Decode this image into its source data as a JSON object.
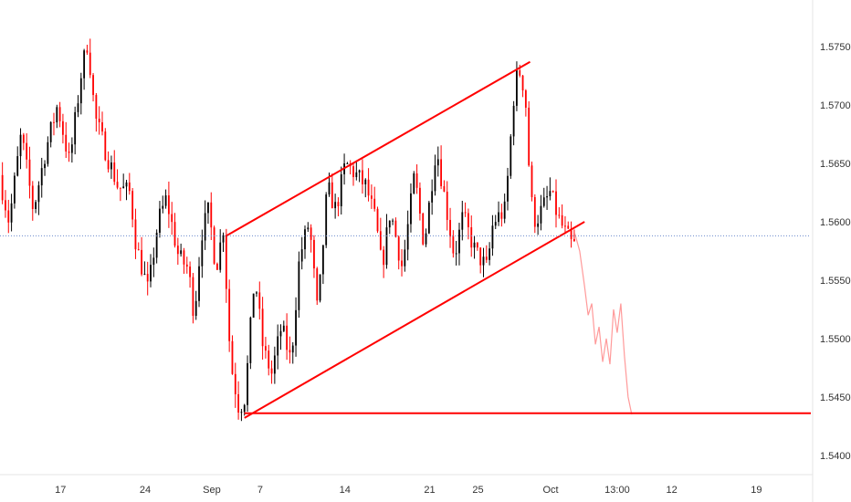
{
  "chart_data": {
    "type": "candlestick",
    "title": "",
    "xlabel": "",
    "ylabel": "",
    "ylim": [
      1.5385,
      1.579
    ],
    "yticks": [
      "1.57500",
      "1.57000",
      "1.56500",
      "1.56000",
      "1.55500",
      "1.55000",
      "1.54500",
      "1.54000"
    ],
    "ytick_values": [
      1.575,
      1.57,
      1.565,
      1.56,
      1.555,
      1.55,
      1.545,
      1.54
    ],
    "xticks": [
      {
        "label": "17",
        "x": 0.5
      },
      {
        "label": "24",
        "x": 7.5
      },
      {
        "label": "Sep",
        "x": 13.0
      },
      {
        "label": "7",
        "x": 17.0
      },
      {
        "label": "14",
        "x": 24.0
      },
      {
        "label": "21",
        "x": 31.0
      },
      {
        "label": "25",
        "x": 35.0
      },
      {
        "label": "Oct",
        "x": 41.0
      },
      {
        "label": "13:00",
        "x": 46.5
      },
      {
        "label": "12",
        "x": 51.0
      },
      {
        "label": "19",
        "x": 58.0
      }
    ],
    "x_range": [
      -4.5,
      62.5
    ],
    "candle_path": [
      [
        -4.3,
        1.564
      ],
      [
        -3.5,
        1.56
      ],
      [
        -2.5,
        1.5675
      ],
      [
        -1.5,
        1.561
      ],
      [
        -0.5,
        1.566
      ],
      [
        0.5,
        1.57
      ],
      [
        1.5,
        1.565
      ],
      [
        2.5,
        1.573
      ],
      [
        3.0,
        1.5755
      ],
      [
        3.6,
        1.569
      ],
      [
        4.5,
        1.566
      ],
      [
        5.5,
        1.563
      ],
      [
        6.5,
        1.5625
      ],
      [
        7.0,
        1.558
      ],
      [
        8.0,
        1.554
      ],
      [
        8.8,
        1.56
      ],
      [
        9.5,
        1.562
      ],
      [
        10.5,
        1.557
      ],
      [
        11.3,
        1.556
      ],
      [
        11.8,
        1.552
      ],
      [
        12.4,
        1.559
      ],
      [
        13.0,
        1.561
      ],
      [
        13.6,
        1.556
      ],
      [
        14.2,
        1.5595
      ],
      [
        14.8,
        1.548
      ],
      [
        15.5,
        1.544
      ],
      [
        16.0,
        1.545
      ],
      [
        16.8,
        1.5555
      ],
      [
        17.5,
        1.549
      ],
      [
        18.2,
        1.547
      ],
      [
        19.0,
        1.551
      ],
      [
        19.8,
        1.548
      ],
      [
        20.5,
        1.557
      ],
      [
        21.3,
        1.56
      ],
      [
        22.0,
        1.552
      ],
      [
        22.8,
        1.563
      ],
      [
        23.5,
        1.561
      ],
      [
        24.3,
        1.565
      ],
      [
        25.2,
        1.564
      ],
      [
        26.0,
        1.563
      ],
      [
        26.8,
        1.56
      ],
      [
        27.3,
        1.556
      ],
      [
        28.0,
        1.561
      ],
      [
        29.0,
        1.556
      ],
      [
        30.0,
        1.564
      ],
      [
        30.8,
        1.558
      ],
      [
        31.8,
        1.5665
      ],
      [
        32.5,
        1.562
      ],
      [
        33.3,
        1.557
      ],
      [
        34.0,
        1.5605
      ],
      [
        35.0,
        1.5575
      ],
      [
        36.0,
        1.556
      ],
      [
        36.5,
        1.56
      ],
      [
        37.5,
        1.561
      ],
      [
        38.3,
        1.572
      ],
      [
        38.8,
        1.573
      ],
      [
        39.2,
        1.57
      ],
      [
        39.6,
        1.562
      ],
      [
        40.0,
        1.56
      ],
      [
        40.5,
        1.561
      ],
      [
        41.2,
        1.5625
      ],
      [
        42.0,
        1.56
      ],
      [
        42.5,
        1.559
      ],
      [
        43.0,
        1.558
      ]
    ],
    "projection_path": [
      [
        43.0,
        1.559
      ],
      [
        43.4,
        1.5575
      ],
      [
        43.8,
        1.5545
      ],
      [
        44.1,
        1.552
      ],
      [
        44.4,
        1.553
      ],
      [
        44.7,
        1.5495
      ],
      [
        45.0,
        1.551
      ],
      [
        45.3,
        1.548
      ],
      [
        45.6,
        1.55
      ],
      [
        45.9,
        1.5478
      ],
      [
        46.2,
        1.5525
      ],
      [
        46.5,
        1.5505
      ],
      [
        46.8,
        1.553
      ],
      [
        47.1,
        1.5485
      ],
      [
        47.4,
        1.545
      ],
      [
        47.7,
        1.5435
      ]
    ],
    "candle_seed": 7,
    "series": [
      {
        "name": "",
        "type": "trendline",
        "x": [
          14.2,
          39.3
        ],
        "y": [
          1.5588,
          1.5737
        ]
      },
      {
        "name": "",
        "type": "trendline",
        "x": [
          15.7,
          43.8
        ],
        "y": [
          1.5432,
          1.56
        ]
      },
      {
        "name": "",
        "type": "horizontal",
        "x": [
          15.7,
          62.5
        ],
        "y": [
          1.5436,
          1.5436
        ]
      },
      {
        "name": "",
        "type": "price-line",
        "y": 1.5588
      }
    ],
    "colors": {
      "up": "#000000",
      "down": "#ff0000",
      "lines": "#ff0000",
      "projection": "#ff9a9a",
      "price_line": "#6a89cc",
      "axis_text": "#333333"
    },
    "grid": false,
    "legend": "none"
  }
}
